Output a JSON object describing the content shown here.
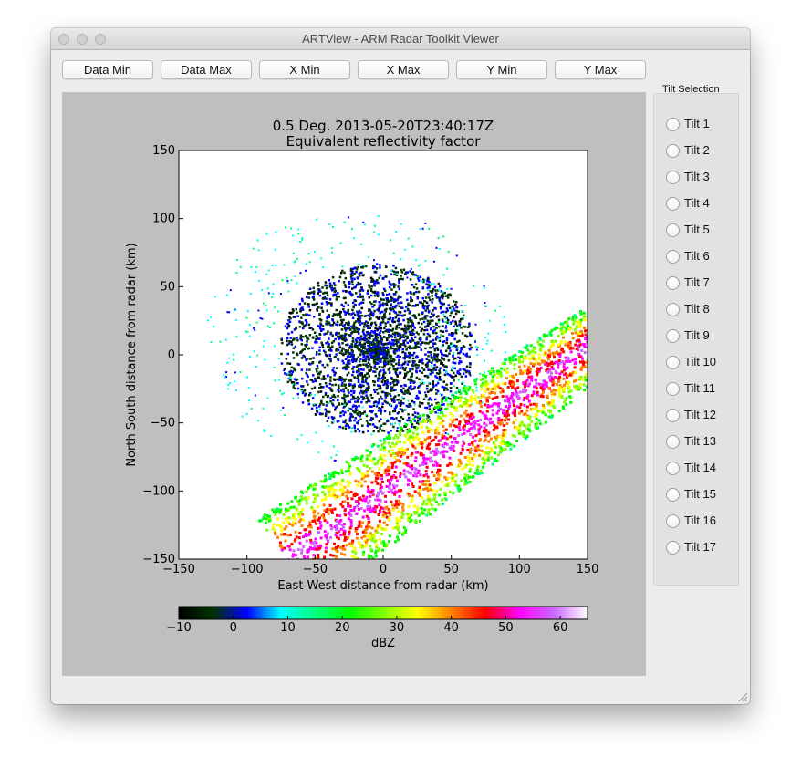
{
  "window": {
    "title": "ARTView - ARM Radar Toolkit Viewer"
  },
  "toolbar": {
    "buttons": [
      "Data Min",
      "Data Max",
      "X Min",
      "X Max",
      "Y Min",
      "Y Max"
    ]
  },
  "tilt_panel": {
    "title": "Tilt Selection",
    "tilts": [
      "Tilt 1",
      "Tilt 2",
      "Tilt 3",
      "Tilt 4",
      "Tilt 5",
      "Tilt 6",
      "Tilt 7",
      "Tilt 8",
      "Tilt 9",
      "Tilt 10",
      "Tilt 11",
      "Tilt 12",
      "Tilt 13",
      "Tilt 14",
      "Tilt 15",
      "Tilt 16",
      "Tilt 17"
    ]
  },
  "chart_data": {
    "type": "heatmap",
    "title": "0.5 Deg. 2013-05-20T23:40:17Z",
    "subtitle": "Equivalent reflectivity factor",
    "xlabel": "East West distance from radar (km)",
    "ylabel": "North South distance from radar (km)",
    "xlim": [
      -150,
      150
    ],
    "ylim": [
      -150,
      150
    ],
    "xticks": [
      "−150",
      "−100",
      "−50",
      "0",
      "50",
      "100",
      "150"
    ],
    "yticks": [
      "150",
      "100",
      "50",
      "0",
      "−50",
      "−100",
      "−150"
    ],
    "colorbar": {
      "label": "dBZ",
      "range": [
        -10,
        65
      ],
      "ticks": [
        "−10",
        "0",
        "10",
        "20",
        "30",
        "40",
        "50",
        "60"
      ],
      "colors": [
        "#000000",
        "#003300",
        "#0000ff",
        "#00ffff",
        "#00ff80",
        "#00ff00",
        "#80ff00",
        "#ffff00",
        "#ff8000",
        "#ff0000",
        "#ff00ff",
        "#cc66ff",
        "#ffffff"
      ]
    }
  }
}
